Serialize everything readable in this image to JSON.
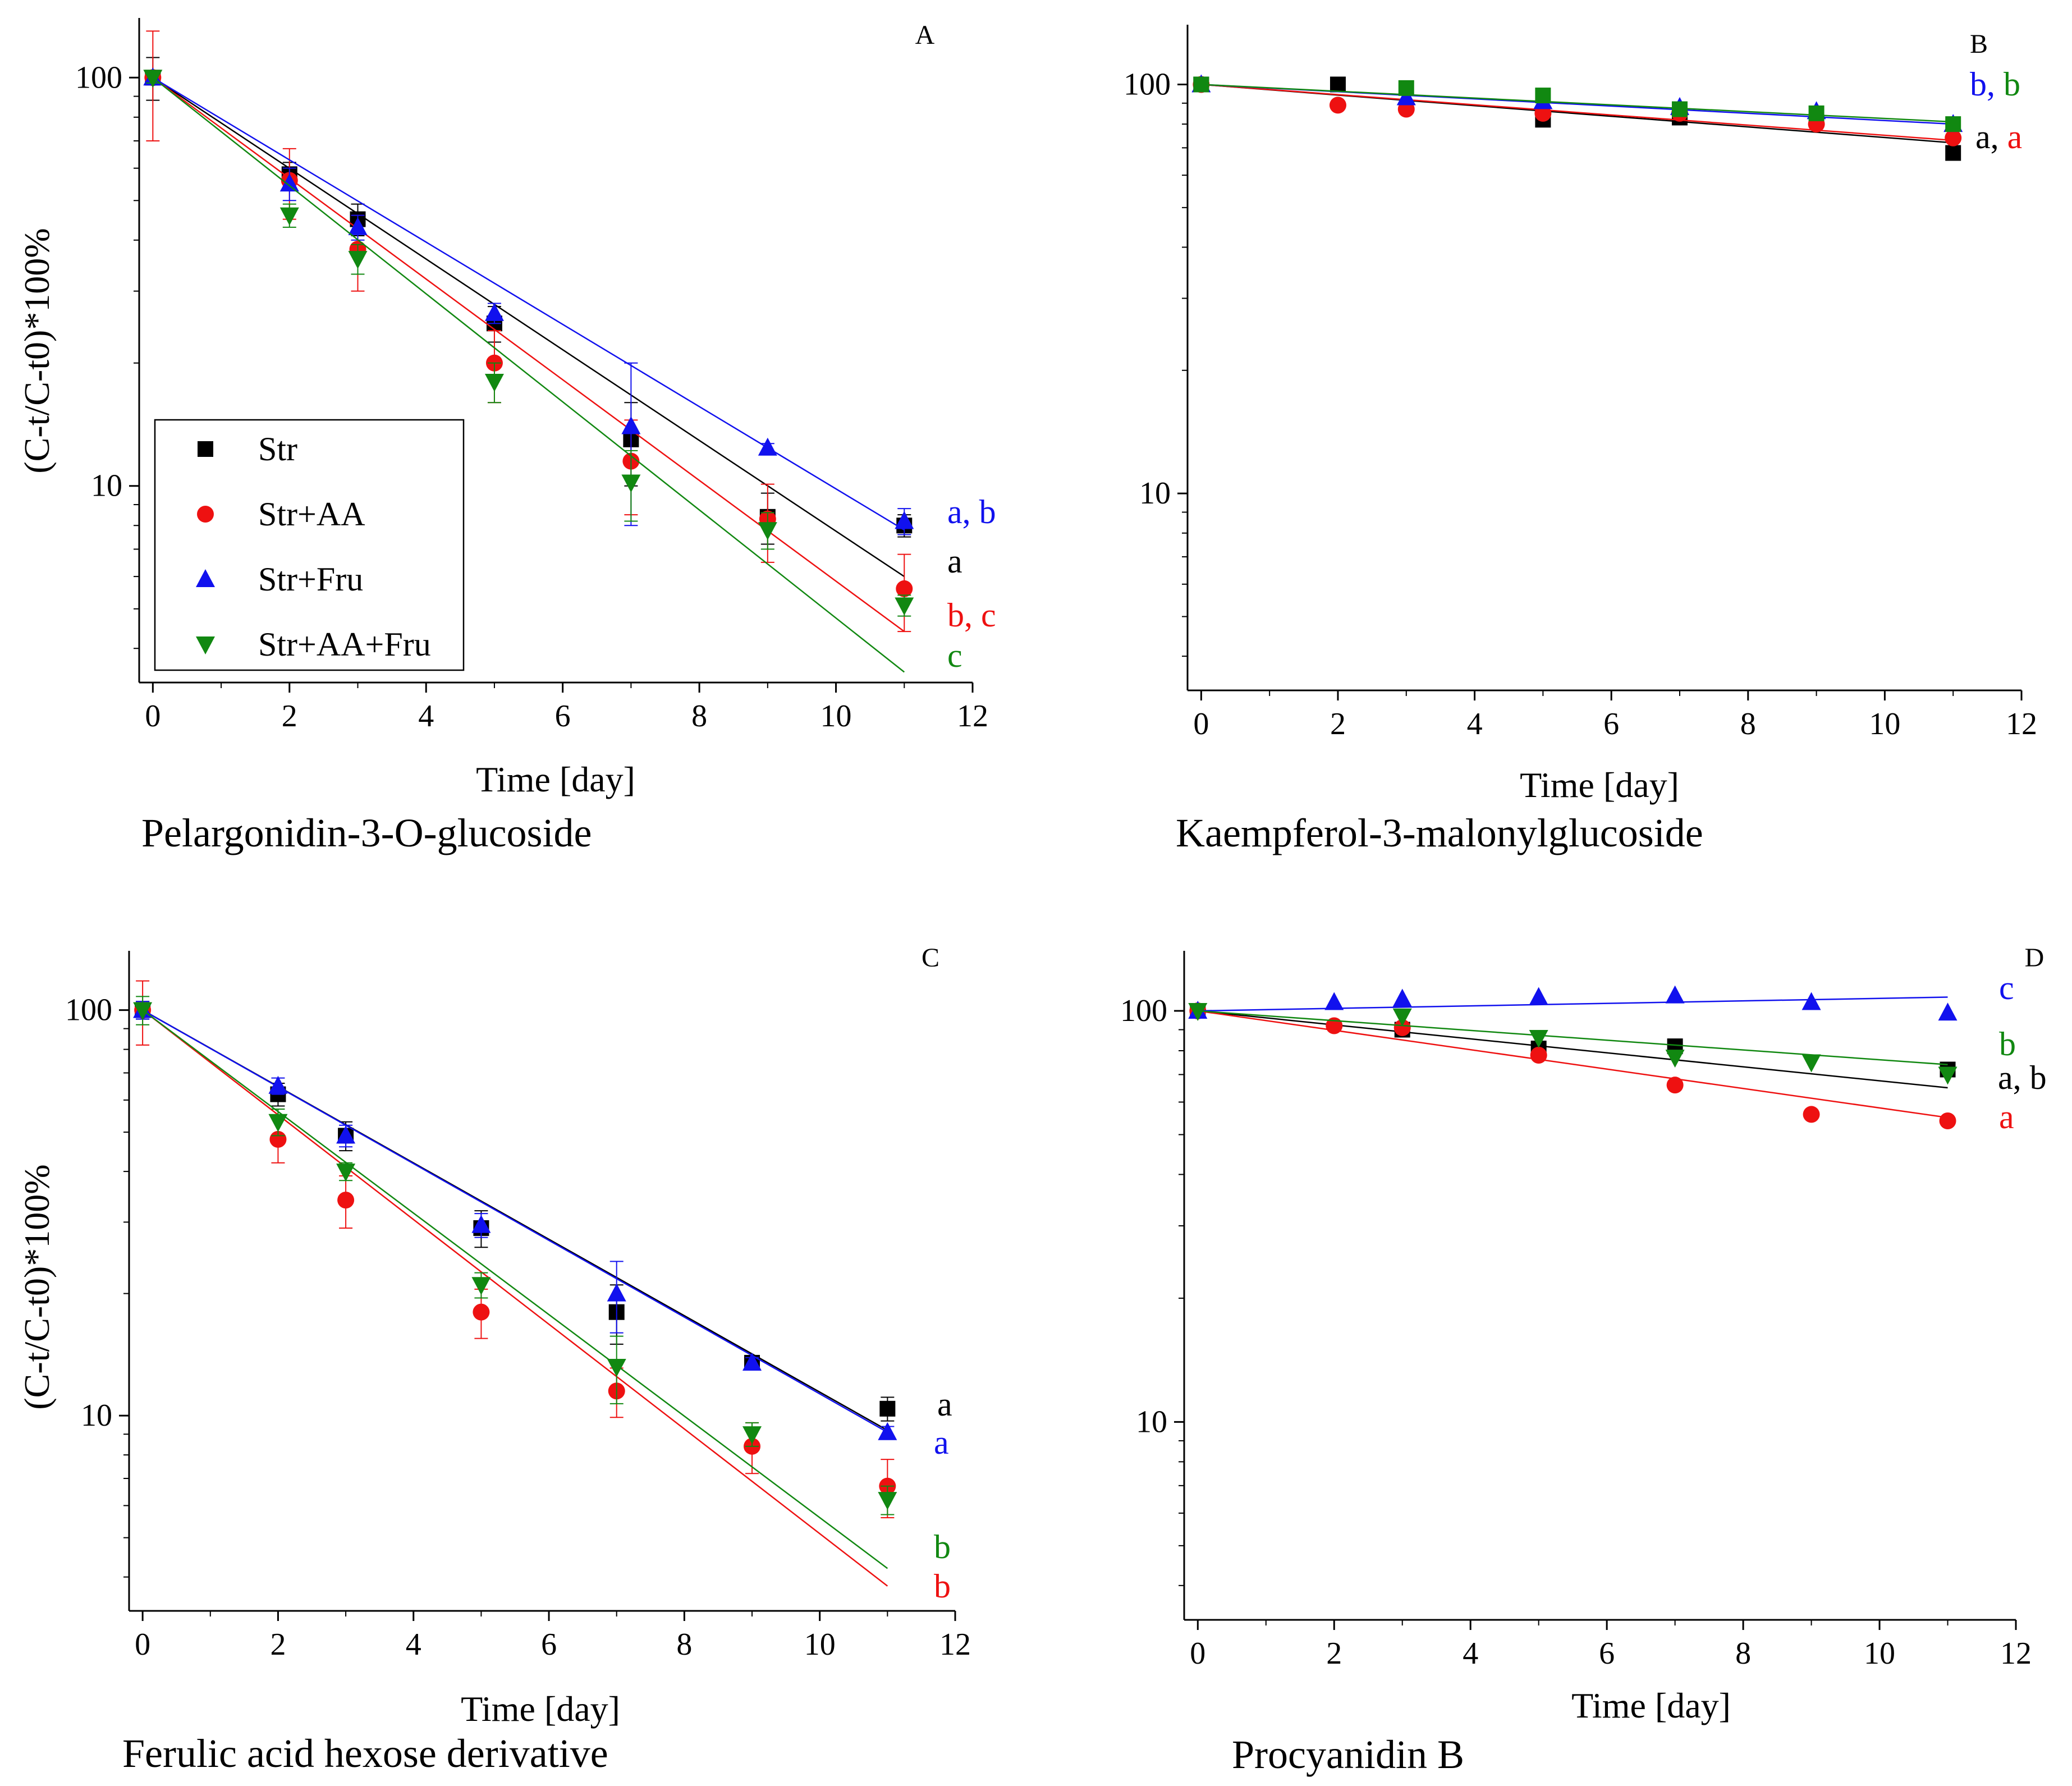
{
  "figure": {
    "legend_panel": "A",
    "legend_labels": [
      "Str",
      "Str+AA",
      "Str+Fru",
      "Str+AA+Fru"
    ],
    "colors": {
      "Str": "#000000",
      "Str+AA": "#ee1111",
      "Str+Fru": "#1111ee",
      "Str+AA+Fru": "#118811"
    }
  },
  "chart_data": [
    {
      "type": "scatter",
      "panel": "A",
      "title": "Pelargonidin-3-O-glucoside",
      "xlabel": "Time [day]",
      "ylabel": "(C-t/C-t0)*100%",
      "yscale": "log",
      "xlim": [
        -0.2,
        12
      ],
      "ylim": [
        3.3,
        140
      ],
      "xticks": [
        0,
        2,
        4,
        6,
        8,
        10,
        12
      ],
      "yticks": [
        10,
        100
      ],
      "legend_position": "bottom-left",
      "series": [
        {
          "name": "Str",
          "color": "#000000",
          "marker": "square",
          "x": [
            0,
            2,
            3,
            5,
            7,
            9,
            11
          ],
          "y": [
            100,
            58,
            45,
            25,
            13,
            8.4,
            8.0
          ],
          "err": [
            12,
            4,
            4,
            2.5,
            3,
            1.2,
            0.5
          ],
          "fit": [
            100,
            6.0
          ]
        },
        {
          "name": "Str+AA",
          "color": "#ee1111",
          "marker": "circle",
          "x": [
            0,
            2,
            3,
            5,
            7,
            9,
            11
          ],
          "y": [
            100,
            56,
            38,
            20,
            11.5,
            8.3,
            5.6
          ],
          "err": [
            30,
            11,
            8,
            4,
            3,
            1.8,
            1.2
          ],
          "fit": [
            100,
            4.4
          ]
        },
        {
          "name": "Str+Fru",
          "color": "#1111ee",
          "marker": "triangle-up",
          "x": [
            0,
            2,
            3,
            5,
            7,
            9,
            11
          ],
          "y": [
            100,
            55,
            43,
            26.5,
            14,
            12.4,
            8.2
          ],
          "err": [
            4,
            5,
            3,
            1.5,
            6,
            0.3,
            0.6
          ],
          "fit": [
            100,
            7.8
          ]
        },
        {
          "name": "Str+AA+Fru",
          "color": "#118811",
          "marker": "triangle-down",
          "x": [
            0,
            2,
            3,
            5,
            7,
            9,
            11
          ],
          "y": [
            100,
            46,
            36,
            18,
            10.2,
            7.8,
            5.1
          ],
          "err": [
            3,
            3,
            3,
            2,
            2,
            0.8,
            0.3
          ],
          "fit": [
            100,
            3.5
          ]
        }
      ],
      "annotations": [
        {
          "text": "a, b",
          "color": "#1111ee"
        },
        {
          "text": "a",
          "color": "#000000"
        },
        {
          "text": "b, c",
          "color": "#ee1111"
        },
        {
          "text": "c",
          "color": "#118811"
        }
      ]
    },
    {
      "type": "scatter",
      "panel": "B",
      "title": "Kaempferol-3-malonylglucoside",
      "xlabel": "Time [day]",
      "ylabel": "",
      "yscale": "log",
      "xlim": [
        -0.2,
        12
      ],
      "ylim": [
        3.3,
        140
      ],
      "xticks": [
        0,
        2,
        4,
        6,
        8,
        10,
        12
      ],
      "yticks": [
        10,
        100
      ],
      "series": [
        {
          "name": "Str",
          "color": "#000000",
          "marker": "square",
          "x": [
            0,
            2,
            5,
            7,
            11
          ],
          "y": [
            100,
            100,
            82,
            83,
            68
          ],
          "fit": [
            100,
            72
          ]
        },
        {
          "name": "Str+AA",
          "color": "#ee1111",
          "marker": "circle",
          "x": [
            0,
            2,
            3,
            5,
            7,
            9,
            11
          ],
          "y": [
            100,
            89,
            87,
            85,
            85,
            80,
            74
          ],
          "fit": [
            100,
            73
          ]
        },
        {
          "name": "Str+Fru",
          "color": "#1111ee",
          "marker": "triangle-up",
          "x": [
            0,
            3,
            5,
            7,
            9,
            11
          ],
          "y": [
            100,
            93,
            91,
            88,
            86,
            80
          ],
          "fit": [
            100,
            80
          ]
        },
        {
          "name": "Str+AA+Fru",
          "color": "#118811",
          "marker": "square",
          "x": [
            0,
            3,
            5,
            7,
            9,
            11
          ],
          "y": [
            100,
            98,
            94,
            87,
            85,
            80
          ],
          "fit": [
            100,
            81
          ]
        }
      ],
      "annotations": [
        {
          "parts": [
            {
              "text": "b, ",
              "color": "#1111ee"
            },
            {
              "text": "b",
              "color": "#118811"
            }
          ]
        },
        {
          "parts": [
            {
              "text": "a, ",
              "color": "#000000"
            },
            {
              "text": "a",
              "color": "#ee1111"
            }
          ]
        }
      ]
    },
    {
      "type": "scatter",
      "panel": "C",
      "title": "Ferulic acid hexose derivative",
      "xlabel": "Time [day]",
      "ylabel": "(C-t/C-t0)*100%",
      "yscale": "log",
      "xlim": [
        -0.2,
        12
      ],
      "ylim": [
        3.3,
        140
      ],
      "xticks": [
        0,
        2,
        4,
        6,
        8,
        10,
        12
      ],
      "yticks": [
        10,
        100
      ],
      "series": [
        {
          "name": "Str",
          "color": "#000000",
          "marker": "square",
          "x": [
            0,
            2,
            3,
            5,
            7,
            9,
            11
          ],
          "y": [
            100,
            62,
            49,
            29,
            18,
            13.5,
            10.4
          ],
          "err": [
            5,
            4,
            4,
            3,
            3,
            0.4,
            0.7
          ],
          "fit": [
            100,
            9.2
          ]
        },
        {
          "name": "Str+AA",
          "color": "#ee1111",
          "marker": "circle",
          "x": [
            0,
            2,
            3,
            5,
            7,
            9,
            11
          ],
          "y": [
            100,
            48,
            34,
            18,
            11.5,
            8.4,
            6.7
          ],
          "err": [
            18,
            6,
            5,
            2.5,
            1.6,
            1.2,
            1.1
          ],
          "fit": [
            100,
            3.8
          ]
        },
        {
          "name": "Str+Fru",
          "color": "#1111ee",
          "marker": "triangle-up",
          "x": [
            0,
            2,
            3,
            5,
            7,
            9,
            11
          ],
          "y": [
            100,
            65,
            49,
            29.5,
            20,
            13.5,
            9.1
          ],
          "err": [
            5,
            3,
            3,
            2,
            4,
            0.4,
            0.3
          ],
          "fit": [
            100,
            9.1
          ]
        },
        {
          "name": "Str+AA+Fru",
          "color": "#118811",
          "marker": "triangle-down",
          "x": [
            0,
            2,
            3,
            5,
            7,
            9,
            11
          ],
          "y": [
            100,
            53,
            40,
            21,
            13.2,
            9.0,
            6.2
          ],
          "err": [
            8,
            4,
            2,
            1.5,
            2.5,
            0.6,
            0.5
          ],
          "fit": [
            100,
            4.2
          ]
        }
      ],
      "annotations": [
        {
          "text": "a",
          "color": "#000000"
        },
        {
          "text": "a",
          "color": "#1111ee"
        },
        {
          "text": "b",
          "color": "#118811"
        },
        {
          "text": "b",
          "color": "#ee1111"
        }
      ]
    },
    {
      "type": "scatter",
      "panel": "D",
      "title": "Procyanidin B",
      "xlabel": "Time [day]",
      "ylabel": "",
      "yscale": "log",
      "xlim": [
        -0.2,
        12
      ],
      "ylim": [
        3.3,
        140
      ],
      "xticks": [
        0,
        2,
        4,
        6,
        8,
        10,
        12
      ],
      "yticks": [
        10,
        100
      ],
      "series": [
        {
          "name": "Str",
          "color": "#000000",
          "marker": "square",
          "x": [
            0,
            3,
            5,
            7,
            11
          ],
          "y": [
            100,
            90,
            81,
            82,
            72
          ],
          "fit": [
            100,
            65
          ]
        },
        {
          "name": "Str+AA",
          "color": "#ee1111",
          "marker": "circle",
          "x": [
            0,
            2,
            3,
            5,
            7,
            9,
            11
          ],
          "y": [
            100,
            92,
            91,
            78,
            66,
            56,
            54
          ],
          "fit": [
            100,
            55
          ]
        },
        {
          "name": "Str+Fru",
          "color": "#1111ee",
          "marker": "triangle-up",
          "x": [
            0,
            2,
            3,
            5,
            7,
            9,
            11
          ],
          "y": [
            100,
            105,
            107,
            108,
            109,
            105,
            99
          ],
          "fit": [
            100,
            108
          ]
        },
        {
          "name": "Str+AA+Fru",
          "color": "#118811",
          "marker": "triangle-down",
          "x": [
            0,
            3,
            5,
            7,
            9,
            11
          ],
          "y": [
            100,
            97,
            86,
            77,
            75,
            70
          ],
          "fit": [
            100,
            74
          ]
        }
      ],
      "annotations": [
        {
          "text": "c",
          "color": "#1111ee"
        },
        {
          "text": "b",
          "color": "#118811"
        },
        {
          "text": "a, b",
          "color": "#000000"
        },
        {
          "text": "a",
          "color": "#ee1111"
        }
      ]
    }
  ]
}
